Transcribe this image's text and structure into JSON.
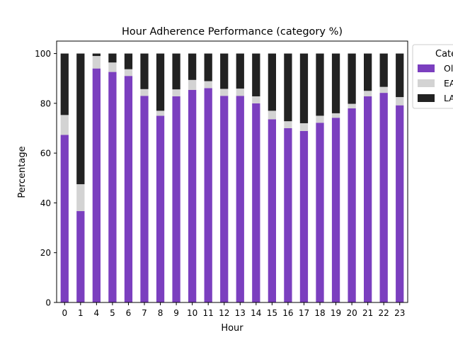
{
  "chart_data": {
    "type": "bar",
    "stacked": true,
    "title": "Hour Adherence Performance (category %)",
    "xlabel": "Hour",
    "ylabel": "Percentage",
    "ylim": [
      0,
      105
    ],
    "yticks": [
      0,
      20,
      40,
      60,
      80,
      100
    ],
    "grid": false,
    "legend": {
      "title": "Cate",
      "placement": "outside top-right, partially clipped"
    },
    "categories": [
      "0",
      "1",
      "4",
      "5",
      "6",
      "7",
      "8",
      "9",
      "10",
      "11",
      "12",
      "13",
      "14",
      "15",
      "16",
      "17",
      "18",
      "19",
      "20",
      "21",
      "22",
      "23"
    ],
    "series": [
      {
        "name": "Ol",
        "color": "#7b3fbf",
        "values": [
          67.3,
          36.7,
          94,
          92.6,
          91,
          83,
          75,
          82.8,
          85.4,
          86.1,
          83,
          83,
          80,
          73.6,
          70,
          68.9,
          72.2,
          74.2,
          78,
          82.8,
          84.2,
          79.2
        ]
      },
      {
        "name": "EA",
        "color": "#d3d3d3",
        "values": [
          8,
          10.8,
          5,
          3.8,
          2.7,
          2.7,
          2,
          2.8,
          4,
          2.8,
          2.8,
          2.9,
          2.8,
          3.4,
          2.8,
          3.1,
          2.8,
          1.8,
          1.8,
          2.2,
          2.4,
          3.3
        ]
      },
      {
        "name": "LA",
        "color": "#222222",
        "values": [
          24.7,
          52.5,
          1,
          3.6,
          6.3,
          14.3,
          23,
          14.4,
          10.6,
          11.1,
          14.2,
          14.1,
          17.2,
          23,
          27.2,
          28,
          25,
          24,
          20.2,
          15,
          13.4,
          17.5
        ]
      }
    ]
  }
}
